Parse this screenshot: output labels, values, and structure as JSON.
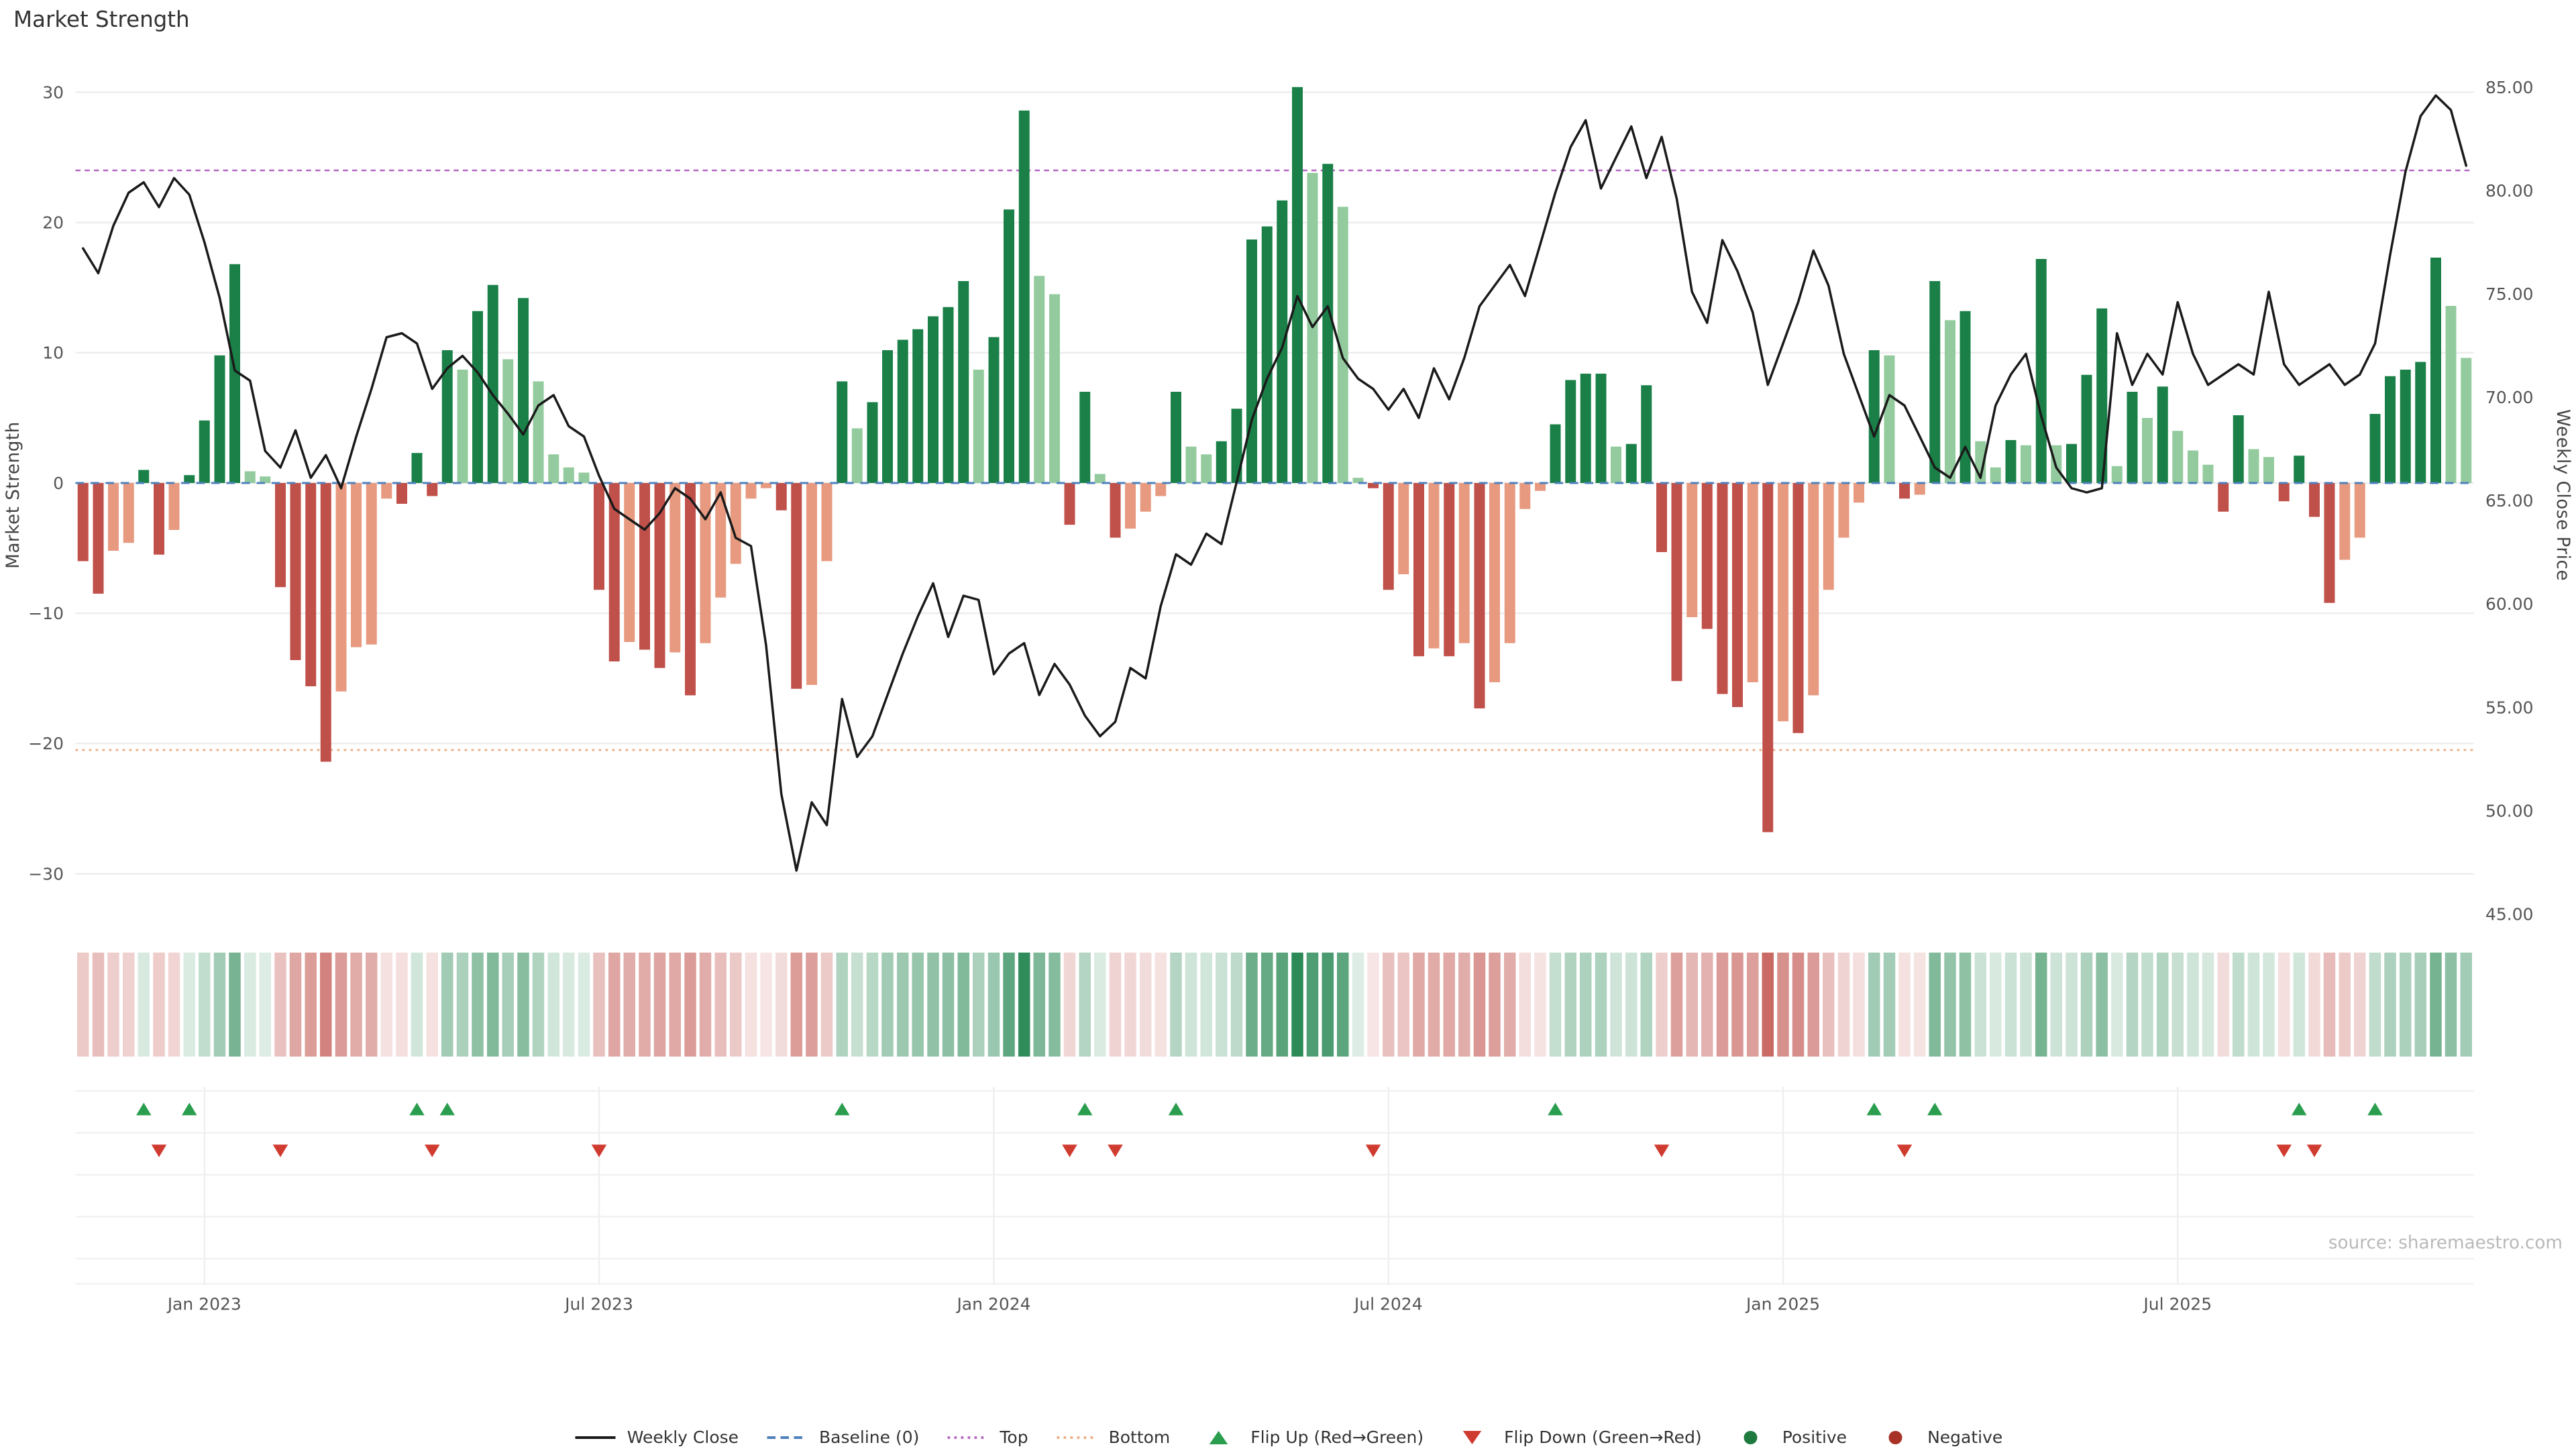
{
  "title": "Market Strength",
  "source": "source: sharemaestro.com",
  "colors": {
    "positive_dark": "#1a8048",
    "positive_light": "#93cb9e",
    "negative_dark": "#c0504a",
    "negative_light": "#e79a80",
    "line": "#1a1a1a",
    "baseline": "#4f81bd",
    "top": "#b564c3",
    "bottom": "#eeab80",
    "flip_up": "#2a9d4e",
    "flip_down": "#d03b30",
    "positive_dot": "#1f7a3f",
    "negative_dot": "#a93226"
  },
  "legend": [
    {
      "id": "weekly-close",
      "label": "Weekly Close",
      "swatch": "line",
      "color": "#1a1a1a"
    },
    {
      "id": "baseline",
      "label": "Baseline (0)",
      "swatch": "dashed",
      "color": "#4f81bd"
    },
    {
      "id": "top",
      "label": "Top",
      "swatch": "dotted",
      "color": "#b564c3"
    },
    {
      "id": "bottom",
      "label": "Bottom",
      "swatch": "dotted",
      "color": "#eeab80"
    },
    {
      "id": "flip-up",
      "label": "Flip Up (Red→Green)",
      "swatch": "triangle-up",
      "color": "#2a9d4e"
    },
    {
      "id": "flip-down",
      "label": "Flip Down (Green→Red)",
      "swatch": "triangle-down",
      "color": "#d03b30"
    },
    {
      "id": "positive",
      "label": "Positive",
      "swatch": "dot",
      "color": "#1f7a3f"
    },
    {
      "id": "negative",
      "label": "Negative",
      "swatch": "dot",
      "color": "#a93226"
    }
  ],
  "chart_data": {
    "type": "combo-bar-line",
    "title": "Market Strength",
    "x_unit": "week",
    "x_tick_labels": [
      "Jan 2023",
      "Jul 2023",
      "Jan 2024",
      "Jul 2024",
      "Jan 2025",
      "Jul 2025"
    ],
    "x_tick_weeks": [
      8,
      34,
      60,
      86,
      112,
      138
    ],
    "left_axis": {
      "label": "Market Strength",
      "range": [
        -32,
        32
      ],
      "tick_values": [
        30,
        20,
        10,
        0,
        -10,
        -20,
        -30
      ],
      "tick_labels": [
        "30",
        "20",
        "10",
        "0",
        "−10",
        "−20",
        "−30"
      ]
    },
    "right_axis": {
      "label": "Weekly Close Price",
      "range": [
        44,
        86
      ],
      "tick_values": [
        85,
        80,
        75,
        70,
        65,
        60,
        55,
        50,
        45
      ],
      "tick_labels": [
        "85.00",
        "80.00",
        "75.00",
        "70.00",
        "65.00",
        "60.00",
        "55.00",
        "50.00",
        "45.00"
      ]
    },
    "thresholds": {
      "baseline": 0,
      "top": 24,
      "bottom": -20.5
    },
    "series": [
      {
        "name": "Market Strength",
        "type": "bar",
        "axis": "left",
        "values": [
          -6.0,
          -8.5,
          -5.2,
          -4.6,
          1.0,
          -5.5,
          -3.6,
          0.6,
          4.8,
          9.8,
          16.8,
          0.9,
          0.5,
          -8.0,
          -13.6,
          -15.6,
          -21.4,
          -16.0,
          -12.6,
          -12.4,
          -1.2,
          -1.6,
          2.3,
          -1.0,
          10.2,
          8.7,
          13.2,
          15.2,
          9.5,
          14.2,
          7.8,
          2.2,
          1.2,
          0.8,
          -8.2,
          -13.7,
          -12.2,
          -12.8,
          -14.2,
          -13.0,
          -16.3,
          -12.3,
          -8.8,
          -6.2,
          -1.2,
          -0.4,
          -2.1,
          -15.8,
          -15.5,
          -6.0,
          7.8,
          4.2,
          6.2,
          10.2,
          11.0,
          11.8,
          12.8,
          13.5,
          15.5,
          8.7,
          11.2,
          21.0,
          28.6,
          15.9,
          14.5,
          -3.2,
          7.0,
          0.7,
          -4.2,
          -3.5,
          -2.2,
          -1.0,
          7.0,
          2.8,
          2.2,
          3.2,
          5.7,
          18.7,
          19.7,
          21.7,
          30.4,
          23.8,
          24.5,
          21.2,
          0.4,
          -0.4,
          -8.2,
          -7.0,
          -13.3,
          -12.7,
          -13.3,
          -12.3,
          -17.3,
          -15.3,
          -12.3,
          -2.0,
          -0.6,
          4.5,
          7.9,
          8.4,
          8.4,
          2.8,
          3.0,
          7.5,
          -5.3,
          -15.2,
          -10.3,
          -11.2,
          -16.2,
          -17.2,
          -15.3,
          -26.8,
          -18.3,
          -19.2,
          -16.3,
          -8.2,
          -4.2,
          -1.5,
          10.2,
          9.8,
          -1.2,
          -0.9,
          15.5,
          12.5,
          13.2,
          3.2,
          1.2,
          3.3,
          2.9,
          17.2,
          2.9,
          3.0,
          8.3,
          13.4,
          1.3,
          7.0,
          5.0,
          7.4,
          4.0,
          2.5,
          1.4,
          -2.2,
          5.2,
          2.6,
          2.0,
          -1.4,
          2.1,
          -2.6,
          -9.2,
          -5.9,
          -4.2,
          5.3,
          8.2,
          8.7,
          9.3,
          17.3,
          13.6,
          9.6
        ]
      },
      {
        "name": "Weekly Close",
        "type": "line",
        "axis": "right",
        "values": [
          77.2,
          76.0,
          78.3,
          79.9,
          80.4,
          79.2,
          80.6,
          79.8,
          77.5,
          74.8,
          71.3,
          70.8,
          67.4,
          66.6,
          68.4,
          66.1,
          67.2,
          65.6,
          68.1,
          70.4,
          72.9,
          73.1,
          72.6,
          70.4,
          71.4,
          72.0,
          71.2,
          70.1,
          69.2,
          68.2,
          69.6,
          70.1,
          68.6,
          68.1,
          66.2,
          64.6,
          64.1,
          63.6,
          64.4,
          65.6,
          65.1,
          64.1,
          65.4,
          63.2,
          62.8,
          58.0,
          50.8,
          47.1,
          50.4,
          49.3,
          55.4,
          52.6,
          53.6,
          55.6,
          57.6,
          59.4,
          61.0,
          58.4,
          60.4,
          60.2,
          56.6,
          57.6,
          58.1,
          55.6,
          57.1,
          56.1,
          54.6,
          53.6,
          54.3,
          56.9,
          56.4,
          59.9,
          62.4,
          61.9,
          63.4,
          62.9,
          65.9,
          68.9,
          70.9,
          72.4,
          74.9,
          73.4,
          74.4,
          71.9,
          70.9,
          70.4,
          69.4,
          70.4,
          69.0,
          71.4,
          69.9,
          71.9,
          74.4,
          75.4,
          76.4,
          74.9,
          77.4,
          79.9,
          82.1,
          83.4,
          80.1,
          81.6,
          83.1,
          80.6,
          82.6,
          79.6,
          75.1,
          73.6,
          77.6,
          76.1,
          74.1,
          70.6,
          72.6,
          74.6,
          77.1,
          75.4,
          72.1,
          70.1,
          68.1,
          70.1,
          69.6,
          68.1,
          66.6,
          66.1,
          67.6,
          66.1,
          69.6,
          71.1,
          72.1,
          69.1,
          66.6,
          65.6,
          65.4,
          65.6,
          73.1,
          70.6,
          72.1,
          71.1,
          74.6,
          72.1,
          70.6,
          71.1,
          71.6,
          71.1,
          75.1,
          71.6,
          70.6,
          71.1,
          71.6,
          70.6,
          71.1,
          72.6,
          76.9,
          80.9,
          83.6,
          84.6,
          83.9,
          81.2
        ]
      }
    ],
    "flip_up_weeks": [
      4,
      7,
      22,
      24,
      50,
      66,
      72,
      97,
      118,
      122,
      146,
      151
    ],
    "flip_down_weeks": [
      5,
      13,
      23,
      34,
      65,
      68,
      85,
      104,
      120,
      145,
      147
    ]
  }
}
